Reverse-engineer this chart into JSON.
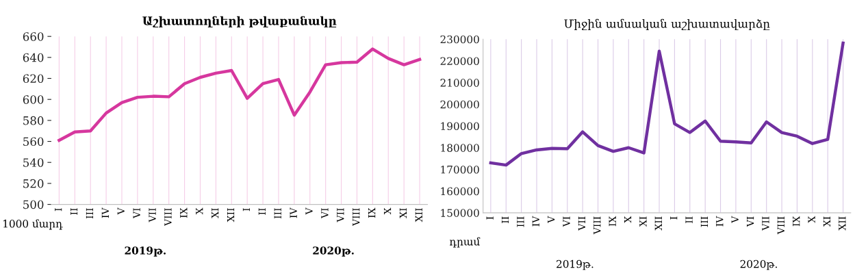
{
  "chart_data": [
    {
      "type": "line",
      "title": "Աշխատողների թվաքանակը",
      "ylabel": "1000 մարդ",
      "categories": [
        "I",
        "II",
        "III",
        "IV",
        "V",
        "VI",
        "VII",
        "VIII",
        "IX",
        "X",
        "XI",
        "XII",
        "I",
        "II",
        "III",
        "IV",
        "V",
        "VI",
        "VII",
        "VIII",
        "IX",
        "X",
        "XI",
        "XII"
      ],
      "series": [
        {
          "color": "#d6379e",
          "values": [
            561,
            569,
            570,
            587,
            597,
            602,
            603,
            602.5,
            615,
            621,
            625,
            627.5,
            601,
            615,
            619,
            585,
            607,
            633,
            635,
            635.5,
            648,
            639,
            633,
            638
          ]
        }
      ],
      "ylim": [
        500,
        660
      ],
      "yticks": [
        500,
        520,
        540,
        560,
        580,
        600,
        620,
        640,
        660
      ],
      "grid": "x",
      "legend": false,
      "marker": "none",
      "line_style": "solid",
      "annotations": [
        "2019թ.",
        "2020թ."
      ]
    },
    {
      "type": "line",
      "title": "Միջին ամսական աշխատավարձը",
      "ylabel": "դրամ",
      "categories": [
        "I",
        "II",
        "III",
        "IV",
        "V",
        "VI",
        "VII",
        "VIII",
        "IX",
        "X",
        "XI",
        "XII",
        "I",
        "II",
        "III",
        "IV",
        "V",
        "VI",
        "VII",
        "VIII",
        "IX",
        "X",
        "XI",
        "XII"
      ],
      "series": [
        {
          "color": "#7030a0",
          "values": [
            173000,
            172000,
            177300,
            179000,
            179700,
            179500,
            187300,
            181000,
            178300,
            180000,
            177600,
            224500,
            191000,
            187000,
            192300,
            183000,
            182700,
            182200,
            191900,
            187000,
            185300,
            181900,
            183800,
            228200
          ]
        }
      ],
      "ylim": [
        150000,
        230000
      ],
      "yticks": [
        150000,
        160000,
        170000,
        180000,
        190000,
        200000,
        210000,
        220000,
        230000
      ],
      "grid": "x",
      "legend": false,
      "marker": "none",
      "line_style": "solid",
      "annotations": [
        "2019թ.",
        "2020թ."
      ]
    }
  ]
}
